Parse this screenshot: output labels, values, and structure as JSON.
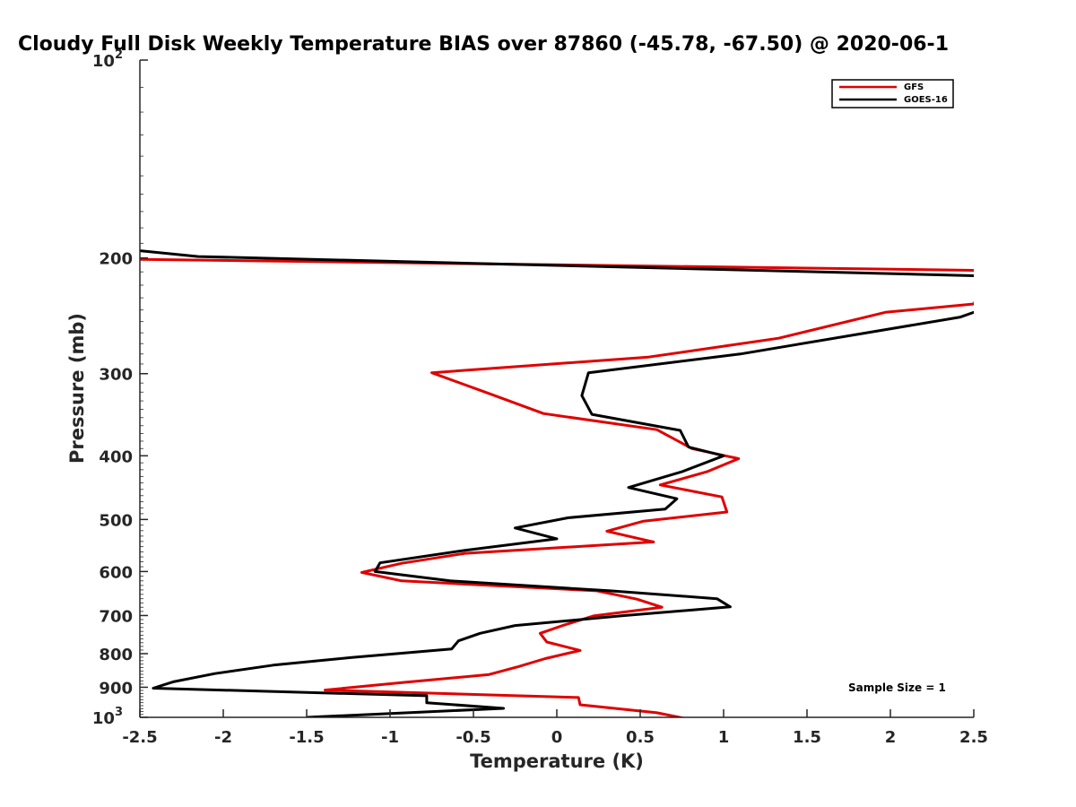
{
  "chart_data": {
    "type": "line",
    "title": "Cloudy Full Disk Weekly Temperature BIAS over 87860 (-45.78, -67.50) @ 2020-06-1",
    "xlabel": "Temperature (K)",
    "ylabel": "Pressure (mb)",
    "xlim": [
      -2.5,
      2.5
    ],
    "ylim": [
      100,
      1000
    ],
    "y_scale": "log",
    "y_reversed": true,
    "grid": false,
    "legend_position": "top-right",
    "x_ticks": [
      {
        "value": -2.5,
        "label": "-2.5"
      },
      {
        "value": -2,
        "label": "-2"
      },
      {
        "value": -1.5,
        "label": "-1.5"
      },
      {
        "value": -1,
        "label": "-1"
      },
      {
        "value": -0.5,
        "label": "-0.5"
      },
      {
        "value": 0,
        "label": "0"
      },
      {
        "value": 0.5,
        "label": "0.5"
      },
      {
        "value": 1,
        "label": "1"
      },
      {
        "value": 1.5,
        "label": "1.5"
      },
      {
        "value": 2,
        "label": "2"
      },
      {
        "value": 2.5,
        "label": "2.5"
      }
    ],
    "y_ticks": [
      {
        "value": 100,
        "label": "10",
        "sup": "2"
      },
      {
        "value": 200,
        "label": "200",
        "sup": ""
      },
      {
        "value": 300,
        "label": "300",
        "sup": ""
      },
      {
        "value": 400,
        "label": "400",
        "sup": ""
      },
      {
        "value": 500,
        "label": "500",
        "sup": ""
      },
      {
        "value": 600,
        "label": "600",
        "sup": ""
      },
      {
        "value": 700,
        "label": "700",
        "sup": ""
      },
      {
        "value": 800,
        "label": "800",
        "sup": ""
      },
      {
        "value": 900,
        "label": "900",
        "sup": ""
      },
      {
        "value": 1000,
        "label": "10",
        "sup": "3"
      }
    ],
    "series": [
      {
        "name": "GFS",
        "color": "#e00000",
        "points": [
          [
            -2.5,
            201
          ],
          [
            2.6,
            209
          ],
          [
            2.5,
            235
          ],
          [
            1.97,
            242
          ],
          [
            1.33,
            265
          ],
          [
            0.55,
            283
          ],
          [
            -0.75,
            299
          ],
          [
            -0.4,
            322
          ],
          [
            -0.08,
            345
          ],
          [
            0.6,
            365
          ],
          [
            0.81,
            390
          ],
          [
            1.09,
            404
          ],
          [
            0.9,
            423
          ],
          [
            0.62,
            443
          ],
          [
            0.99,
            462
          ],
          [
            1.02,
            487
          ],
          [
            0.52,
            503
          ],
          [
            0.3,
            521
          ],
          [
            0.58,
            541
          ],
          [
            -0.55,
            563
          ],
          [
            -0.93,
            583
          ],
          [
            -1.17,
            602
          ],
          [
            -0.93,
            620
          ],
          [
            0.24,
            642
          ],
          [
            0.48,
            661
          ],
          [
            0.63,
            680
          ],
          [
            0.22,
            701
          ],
          [
            0.05,
            723
          ],
          [
            -0.1,
            745
          ],
          [
            -0.06,
            768
          ],
          [
            0.14,
            791
          ],
          [
            -0.07,
            814
          ],
          [
            -0.23,
            837
          ],
          [
            -0.41,
            861
          ],
          [
            -0.9,
            884
          ],
          [
            -1.39,
            909
          ],
          [
            0.13,
            933
          ],
          [
            0.14,
            957
          ],
          [
            0.6,
            984
          ],
          [
            0.82,
            1010
          ]
        ]
      },
      {
        "name": "GOES-16",
        "color": "#000000",
        "points": [
          [
            -2.5,
            195
          ],
          [
            -2.15,
            199
          ],
          [
            2.55,
            213
          ],
          [
            2.6,
            237
          ],
          [
            2.42,
            246
          ],
          [
            1.1,
            280
          ],
          [
            0.19,
            299
          ],
          [
            0.15,
            324
          ],
          [
            0.21,
            346
          ],
          [
            0.74,
            366
          ],
          [
            0.79,
            388
          ],
          [
            1.0,
            400
          ],
          [
            0.75,
            423
          ],
          [
            0.43,
            447
          ],
          [
            0.72,
            465
          ],
          [
            0.65,
            482
          ],
          [
            0.07,
            497
          ],
          [
            -0.25,
            515
          ],
          [
            0.0,
            535
          ],
          [
            -0.55,
            557
          ],
          [
            -1.06,
            582
          ],
          [
            -1.09,
            600
          ],
          [
            -0.64,
            620
          ],
          [
            0.32,
            642
          ],
          [
            0.96,
            660
          ],
          [
            1.04,
            679
          ],
          [
            0.38,
            701
          ],
          [
            -0.25,
            725
          ],
          [
            -0.46,
            745
          ],
          [
            -0.59,
            765
          ],
          [
            -0.63,
            787
          ],
          [
            -1.23,
            811
          ],
          [
            -1.7,
            833
          ],
          [
            -2.05,
            858
          ],
          [
            -2.3,
            883
          ],
          [
            -2.42,
            903
          ],
          [
            -0.78,
            927
          ],
          [
            -0.78,
            950
          ],
          [
            -0.32,
            969
          ],
          [
            -1.5,
            1000
          ]
        ]
      }
    ],
    "annotations": [
      {
        "text": "Sample Size = 1"
      }
    ]
  }
}
